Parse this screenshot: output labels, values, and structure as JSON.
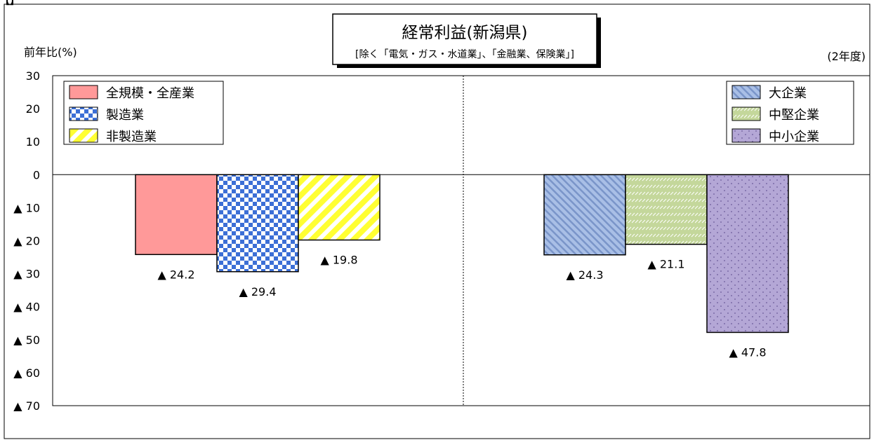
{
  "chart_data": {
    "type": "bar",
    "title": "経常利益(新潟県)",
    "subtitle": "[除く「電気・ガス・水道業」、「金融業、保険業」]",
    "ylabel": "前年比(%)",
    "period": "(2年度)",
    "ylim": [
      -70,
      30
    ],
    "y_ticks": [
      {
        "value": 30,
        "label": "30"
      },
      {
        "value": 20,
        "label": "20"
      },
      {
        "value": 10,
        "label": "10"
      },
      {
        "value": 0,
        "label": "0"
      },
      {
        "value": -10,
        "label": "▲ 10"
      },
      {
        "value": -20,
        "label": "▲ 20"
      },
      {
        "value": -30,
        "label": "▲ 30"
      },
      {
        "value": -40,
        "label": "▲ 40"
      },
      {
        "value": -50,
        "label": "▲ 50"
      },
      {
        "value": -60,
        "label": "▲ 60"
      },
      {
        "value": -70,
        "label": "▲ 70"
      }
    ],
    "grid": false,
    "groups": [
      {
        "legend_position": "top-left",
        "series": [
          {
            "name": "全規模・全産業",
            "value": -24.2,
            "label": "▲ 24.2",
            "pattern": "solid",
            "color": "#ff9999"
          },
          {
            "name": "製造業",
            "value": -29.4,
            "label": "▲ 29.4",
            "pattern": "checker",
            "color": "#3c6fd6"
          },
          {
            "name": "非製造業",
            "value": -19.8,
            "label": "▲ 19.8",
            "pattern": "diagonal",
            "color": "#ffff33"
          }
        ]
      },
      {
        "legend_position": "top-right",
        "series": [
          {
            "name": "大企業",
            "value": -24.3,
            "label": "▲ 24.3",
            "pattern": "hatch",
            "color": "#8ea9db"
          },
          {
            "name": "中堅企業",
            "value": -21.1,
            "label": "▲ 21.1",
            "pattern": "hatch",
            "color": "#c4d79b"
          },
          {
            "name": "中小企業",
            "value": -47.8,
            "label": "▲ 47.8",
            "pattern": "dots",
            "color": "#b4a7d6"
          }
        ]
      }
    ]
  }
}
